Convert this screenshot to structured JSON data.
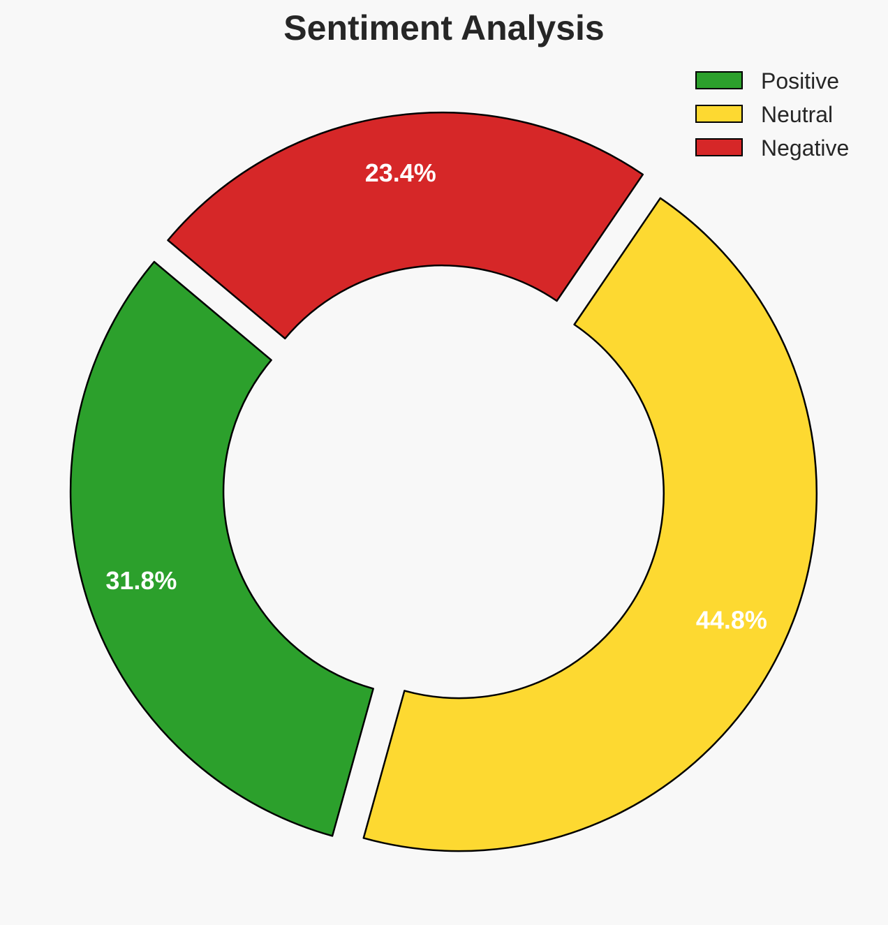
{
  "chart_data": {
    "type": "pie",
    "variant": "donut",
    "title": "Sentiment Analysis",
    "categories": [
      "Positive",
      "Neutral",
      "Negative"
    ],
    "values": [
      31.8,
      44.8,
      23.4
    ],
    "value_labels": [
      "31.8%",
      "44.8%",
      "23.4%"
    ],
    "colors": [
      "#2ca02c",
      "#fdd931",
      "#d62728"
    ],
    "edge_color": "#000000",
    "label_color": "#ffffff",
    "start_angle_deg": 140,
    "direction": "counterclockwise",
    "exploded": true,
    "legend": {
      "position": "top-right",
      "entries": [
        "Positive",
        "Neutral",
        "Negative"
      ]
    }
  }
}
